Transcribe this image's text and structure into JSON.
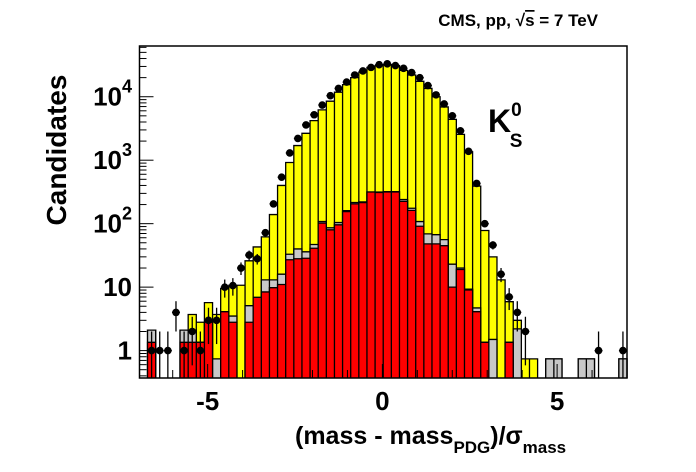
{
  "chart_data": {
    "type": "bar",
    "subtype": "stacked-histogram-log-with-data-points",
    "title": "CMS, pp, √s = 7 TeV",
    "title_parts": {
      "prefix": "CMS, pp, ",
      "sqrt": "√",
      "s": "s",
      "suffix": " = 7 TeV"
    },
    "annotation": {
      "base": "K",
      "sup": "0",
      "sub": "S"
    },
    "ylabel": "Candidates",
    "xlabel": {
      "open": "(mass - mass",
      "sub1": "PDG",
      "mid": ")/σ",
      "sub2": "mass"
    },
    "xlim": [
      -6.95,
      7.0
    ],
    "ylim": [
      0.37,
      63000
    ],
    "yscale": "log",
    "bins": {
      "low": -6.72,
      "high": 7.0,
      "count": 59
    },
    "x_ticks": [
      {
        "v": -5,
        "label": "-5"
      },
      {
        "v": 0,
        "label": "0"
      },
      {
        "v": 5,
        "label": "5"
      }
    ],
    "y_ticks": [
      {
        "v": 1,
        "label": "1",
        "exp": ""
      },
      {
        "v": 10,
        "label": "10",
        "exp": ""
      },
      {
        "v": 100,
        "label": "10",
        "exp": "2"
      },
      {
        "v": 1000,
        "label": "10",
        "exp": "3"
      },
      {
        "v": 10000,
        "label": "10",
        "exp": "4"
      }
    ],
    "series": [
      {
        "name": "total (yellow)",
        "color": "#ffff00",
        "values": [
          2.1,
          0,
          0,
          0,
          2.1,
          3.7,
          2.8,
          5.7,
          3.7,
          9.5,
          10.7,
          10.7,
          26,
          43,
          62,
          139,
          400,
          920,
          1700,
          2650,
          4200,
          6200,
          8500,
          11800,
          15500,
          20000,
          24500,
          29000,
          31000,
          32000,
          31000,
          26000,
          22000,
          17500,
          13500,
          10000,
          6900,
          4400,
          2550,
          1360,
          390,
          78,
          30,
          13,
          5.9,
          3.0,
          0.74,
          0.74,
          0,
          0.74,
          0.74,
          0,
          0,
          0.74,
          0.74,
          0,
          0,
          0,
          0.74
        ]
      },
      {
        "name": "gray component (stacked top)",
        "color": "#c8c8c8",
        "values": [
          2.1,
          0,
          0,
          0,
          2.1,
          2.1,
          1.35,
          2.8,
          0.74,
          4.1,
          3.5,
          0,
          5.1,
          6.9,
          13,
          13,
          16,
          33,
          40,
          36,
          47,
          108,
          86,
          104,
          160,
          215,
          220,
          315,
          315,
          320,
          320,
          240,
          175,
          108,
          69,
          67,
          56,
          23,
          20,
          9.3,
          4.7,
          1.35,
          1.5,
          0,
          1.35,
          2.2,
          0,
          0,
          0,
          0.74,
          0.74,
          0,
          0,
          0.74,
          0.74,
          0,
          0,
          0,
          0.74
        ]
      },
      {
        "name": "red component",
        "color": "#ff0000",
        "values": [
          1.35,
          0,
          0,
          0,
          1.35,
          1.35,
          1.35,
          2.8,
          0,
          4.1,
          2.8,
          0,
          2.8,
          6.9,
          8.4,
          9.8,
          11,
          27,
          28,
          28.5,
          41,
          102,
          80,
          96,
          155,
          205,
          215,
          315,
          310,
          315,
          315,
          225,
          162,
          91,
          48,
          48,
          45,
          10,
          19,
          9,
          4.1,
          1.35,
          0,
          0,
          1.35,
          0,
          0,
          0,
          0,
          0,
          0,
          0,
          0,
          0,
          0,
          0,
          0,
          0,
          0
        ]
      },
      {
        "name": "data",
        "color": "#000000",
        "marker": "circle",
        "values": [
          1,
          1,
          1,
          4,
          1,
          2,
          1,
          3,
          3,
          10,
          10.6,
          20,
          32,
          28,
          72,
          205,
          540,
          1300,
          2200,
          3600,
          5200,
          7400,
          10400,
          13500,
          17000,
          22000,
          25500,
          29000,
          32000,
          33000,
          31000,
          28000,
          24000,
          20000,
          15000,
          10700,
          7700,
          5000,
          2900,
          1380,
          430,
          100,
          46,
          16,
          7,
          4,
          2,
          0,
          0,
          0,
          0,
          0,
          0,
          0,
          0,
          1,
          0,
          0,
          1
        ]
      }
    ]
  }
}
